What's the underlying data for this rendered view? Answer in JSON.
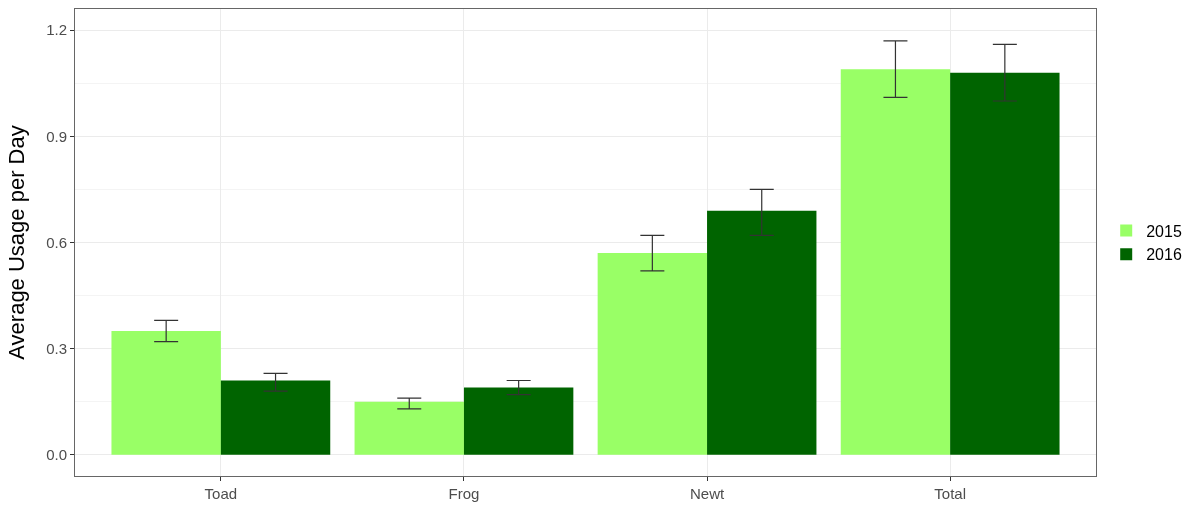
{
  "chart_data": {
    "type": "bar",
    "ylabel": "Average Usage per Day",
    "categories": [
      "Toad",
      "Frog",
      "Newt",
      "Total"
    ],
    "series": [
      {
        "name": "2015",
        "color": "#99ff66",
        "values": [
          0.35,
          0.15,
          0.57,
          1.09
        ],
        "errors": [
          [
            0.32,
            0.38
          ],
          [
            0.13,
            0.16
          ],
          [
            0.52,
            0.62
          ],
          [
            1.01,
            1.17
          ]
        ]
      },
      {
        "name": "2016",
        "color": "#006400",
        "values": [
          0.21,
          0.19,
          0.69,
          1.08
        ],
        "errors": [
          [
            0.18,
            0.23
          ],
          [
            0.17,
            0.21
          ],
          [
            0.62,
            0.75
          ],
          [
            1.0,
            1.16
          ]
        ]
      }
    ],
    "ylim": [
      -0.06,
      1.26
    ],
    "yticks": [
      {
        "value": 0.0,
        "label": "0.0"
      },
      {
        "value": 0.3,
        "label": "0.3"
      },
      {
        "value": 0.6,
        "label": "0.6"
      },
      {
        "value": 0.9,
        "label": "0.9"
      },
      {
        "value": 1.2,
        "label": "1.2"
      }
    ],
    "grid": true,
    "legend": "right"
  }
}
